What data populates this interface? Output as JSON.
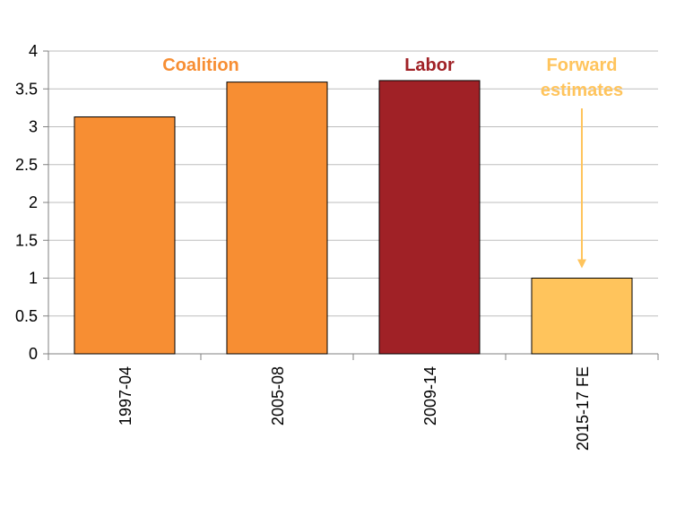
{
  "chart_data": {
    "type": "bar",
    "categories": [
      "1997-04",
      "2005-08",
      "2009-14",
      "2015-17 FE"
    ],
    "values": [
      3.13,
      3.59,
      3.61,
      1.0
    ],
    "bar_colors": [
      "#f78e33",
      "#f78e33",
      "#a02126",
      "#ffc45c"
    ],
    "ylim": [
      0,
      4
    ],
    "yticks": [
      "0",
      "0.5",
      "1",
      "1.5",
      "2",
      "2.5",
      "3",
      "3.5",
      "4"
    ],
    "grid": true,
    "annotations": [
      {
        "lines": [
          "Coalition"
        ],
        "color": "#f78e33",
        "x_category": 0.5
      },
      {
        "lines": [
          "Labor"
        ],
        "color": "#a02126",
        "x_category": 2
      },
      {
        "lines": [
          "Forward",
          "estimates"
        ],
        "color": "#ffc45c",
        "x_category": 3,
        "arrow_to": 1.13
      }
    ]
  }
}
